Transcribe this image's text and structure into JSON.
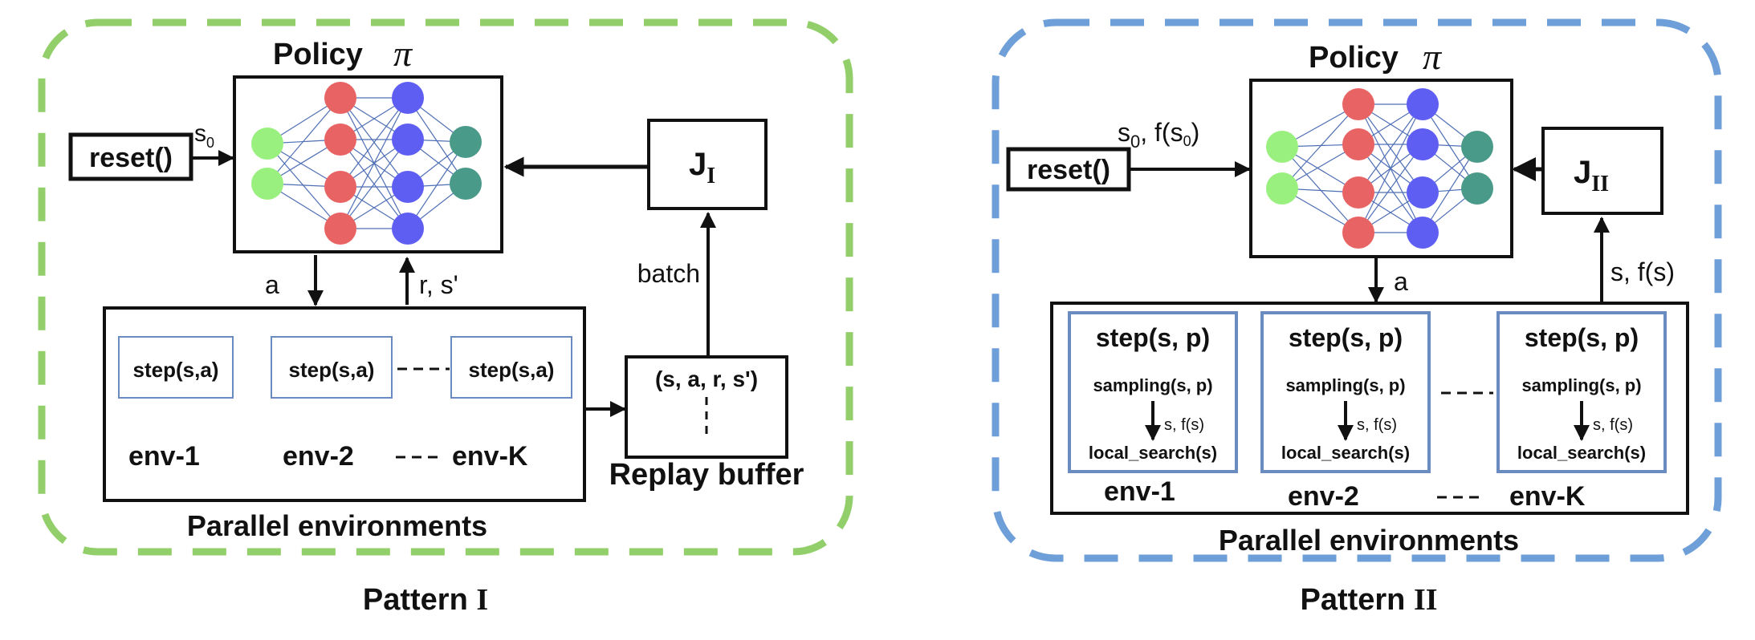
{
  "colors": {
    "pattern1_border": "#92cf6a",
    "pattern2_border": "#6f9fd8",
    "node_input": "#9af07f",
    "node_hidden1": "#e86363",
    "node_hidden2": "#5e5ef2",
    "node_output": "#4a9a8a",
    "edge": "#4f6fb5",
    "step_box_border": "#6a8bbf"
  },
  "pattern1": {
    "policy_label": "Policy",
    "policy_symbol": "π",
    "reset_label": "reset()",
    "reset_arrow_label": "s",
    "reset_arrow_sub": "0",
    "objective_label": "J",
    "objective_sub": "I",
    "action_label": "a",
    "feedback_label": "r, s'",
    "batch_label": "batch",
    "step_labels": [
      "step(s,a)",
      "step(s,a)",
      "step(s,a)"
    ],
    "env_labels": [
      "env-1",
      "env-2",
      "env-K"
    ],
    "replay_tuple": "(s, a, r, s')",
    "replay_label": "Replay buffer",
    "parallel_label": "Parallel environments",
    "caption": "Pattern",
    "caption_numeral": "I"
  },
  "pattern2": {
    "policy_label": "Policy",
    "policy_symbol": "π",
    "reset_label": "reset()",
    "reset_arrow_label": "s",
    "reset_arrow_sub": "0",
    "reset_arrow_tail": ", f(s",
    "reset_arrow_tail_sub": "0",
    "reset_arrow_close": ")",
    "objective_label": "J",
    "objective_sub": "II",
    "action_label": "a",
    "feedback_label": "s, f(s)",
    "step_title": "step(s, p)",
    "sampling_label": "sampling(s, p)",
    "inner_arrow_label": "s, f(s)",
    "local_search_label": "local_search(s)",
    "env_labels": [
      "env-1",
      "env-2",
      "env-K"
    ],
    "parallel_label": "Parallel environments",
    "caption": "Pattern",
    "caption_numeral": "II"
  }
}
